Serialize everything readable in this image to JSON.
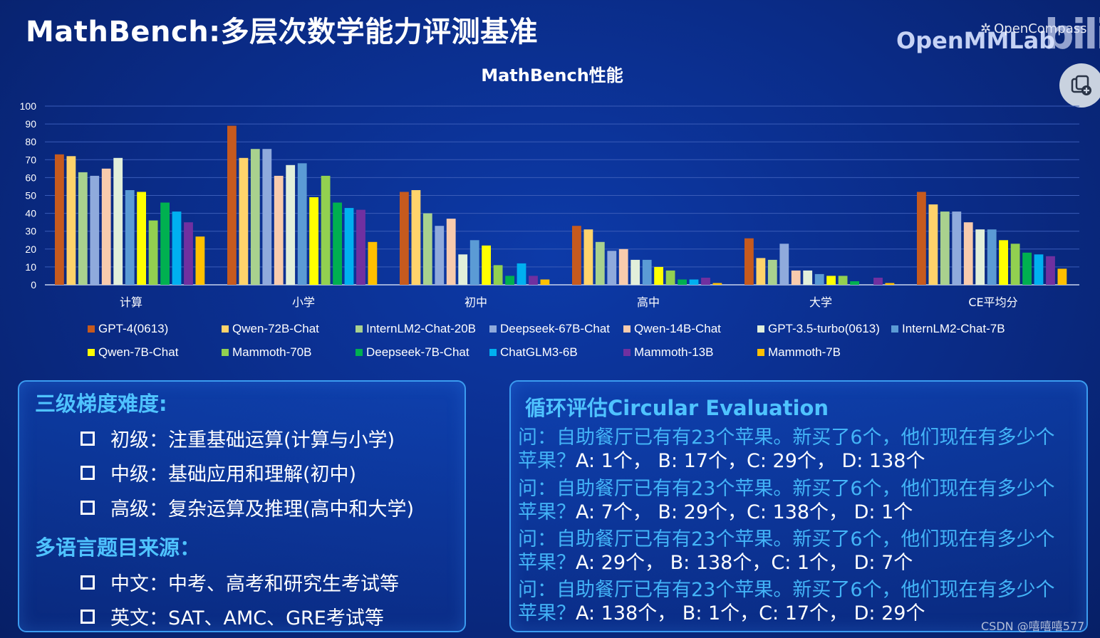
{
  "page": {
    "title": "MathBench:多层次数学能力评测基准",
    "brand_openmmlab": "OpenMMLab",
    "brand_opencompass": "OpenCompass",
    "bili_logo": "bili",
    "watermark": "CSDN @嘻嘻嘻577"
  },
  "chart_data": {
    "type": "bar",
    "title": "MathBench性能",
    "xlabel": "",
    "ylabel": "",
    "ylim": [
      0,
      100
    ],
    "yticks": [
      0,
      10,
      20,
      30,
      40,
      50,
      60,
      70,
      80,
      90,
      100
    ],
    "grid": true,
    "legend_position": "bottom",
    "categories": [
      "计算",
      "小学",
      "初中",
      "高中",
      "大学",
      "CE平均分"
    ],
    "series": [
      {
        "name": "GPT-4(0613)",
        "color": "#c65a1e",
        "values": [
          73,
          89,
          52,
          33,
          26,
          52
        ]
      },
      {
        "name": "Qwen-72B-Chat",
        "color": "#ffd36b",
        "values": [
          72,
          71,
          53,
          31,
          15,
          45
        ]
      },
      {
        "name": "InternLM2-Chat-20B",
        "color": "#a9d18e",
        "values": [
          63,
          76,
          40,
          24,
          14,
          41
        ]
      },
      {
        "name": "Deepseek-67B-Chat",
        "color": "#8faadc",
        "values": [
          61,
          76,
          33,
          19,
          23,
          41
        ]
      },
      {
        "name": "Qwen-14B-Chat",
        "color": "#f8cbad",
        "values": [
          65,
          61,
          37,
          20,
          8,
          35
        ]
      },
      {
        "name": "GPT-3.5-turbo(0613)",
        "color": "#e2efda",
        "values": [
          71,
          67,
          17,
          14,
          8,
          31
        ]
      },
      {
        "name": "InternLM2-Chat-7B",
        "color": "#5b9bd5",
        "values": [
          53,
          68,
          25,
          14,
          6,
          31
        ]
      },
      {
        "name": "Qwen-7B-Chat",
        "color": "#ffff00",
        "values": [
          52,
          49,
          22,
          10,
          5,
          25
        ]
      },
      {
        "name": "Mammoth-70B",
        "color": "#92d050",
        "values": [
          36,
          61,
          11,
          8,
          5,
          23
        ]
      },
      {
        "name": "Deepseek-7B-Chat",
        "color": "#00b050",
        "values": [
          46,
          46,
          5,
          3,
          2,
          18
        ]
      },
      {
        "name": "ChatGLM3-6B",
        "color": "#00b0f0",
        "values": [
          41,
          43,
          12,
          3,
          0,
          17
        ]
      },
      {
        "name": "Mammoth-13B",
        "color": "#7030a0",
        "values": [
          35,
          42,
          5,
          4,
          4,
          16
        ]
      },
      {
        "name": "Mammoth-7B",
        "color": "#ffc000",
        "values": [
          27,
          24,
          3,
          1,
          1,
          9
        ]
      }
    ]
  },
  "left_panel": {
    "heading1": "三级梯度难度:",
    "levels": [
      "初级：注重基础运算(计算与小学)",
      "中级：基础应用和理解(初中)",
      "高级：复杂运算及推理(高中和大学)"
    ],
    "heading2": "多语言题目来源：",
    "sources": [
      "中文：中考、高考和研究生考试等",
      "英文：SAT、AMC、GRE考试等"
    ]
  },
  "right_panel": {
    "heading": "循环评估Circular Evaluation",
    "questions": [
      {
        "q_line1": "问：自助餐厅已有有23个苹果。新买了6个，他们现在有多少个",
        "q_line2": "苹果？",
        "options": "A: 1个， B: 17个，C: 29个， D: 138个"
      },
      {
        "q_line1": "问：自助餐厅已有有23个苹果。新买了6个，他们现在有多少个",
        "q_line2": "苹果？",
        "options": "A: 7个， B: 29个，C: 138个， D: 1个"
      },
      {
        "q_line1": "问：自助餐厅已有有23个苹果。新买了6个，他们现在有多少个",
        "q_line2": "苹果？",
        "options": "A: 29个， B: 138个，C: 1个， D: 7个"
      },
      {
        "q_line1": "问：自助餐厅已有有23个苹果。新买了6个，他们现在有多少个",
        "q_line2": "苹果？",
        "options": "A: 138个， B: 1个，C: 17个， D: 29个"
      }
    ]
  }
}
